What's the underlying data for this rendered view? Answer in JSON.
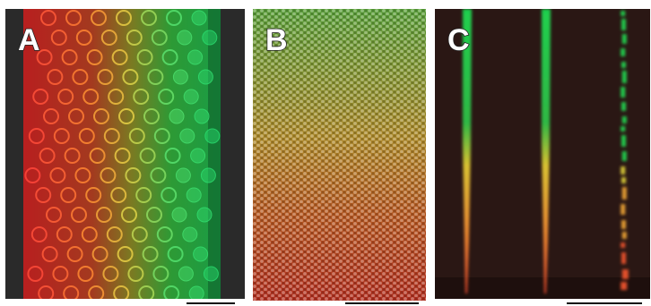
{
  "figure": {
    "panels": [
      {
        "label": "A",
        "content": "fluorescence-micrograph-droplet-array-channel",
        "colors": {
          "left": "#d42a2a",
          "middle": "#c8b030",
          "right": "#1ec85a",
          "background": "#252525"
        }
      },
      {
        "label": "B",
        "content": "fluorescence-micrograph-hexagonal-array",
        "colors": {
          "top": "#6cb83a",
          "middle": "#c89a28",
          "bottom": "#c83a22"
        }
      },
      {
        "label": "C",
        "content": "fluorescence-micrograph-three-capillaries",
        "colors": {
          "background": "#2a1614",
          "green": "#22d050",
          "yellow": "#e0c838",
          "red": "#e04a2a"
        }
      }
    ]
  }
}
